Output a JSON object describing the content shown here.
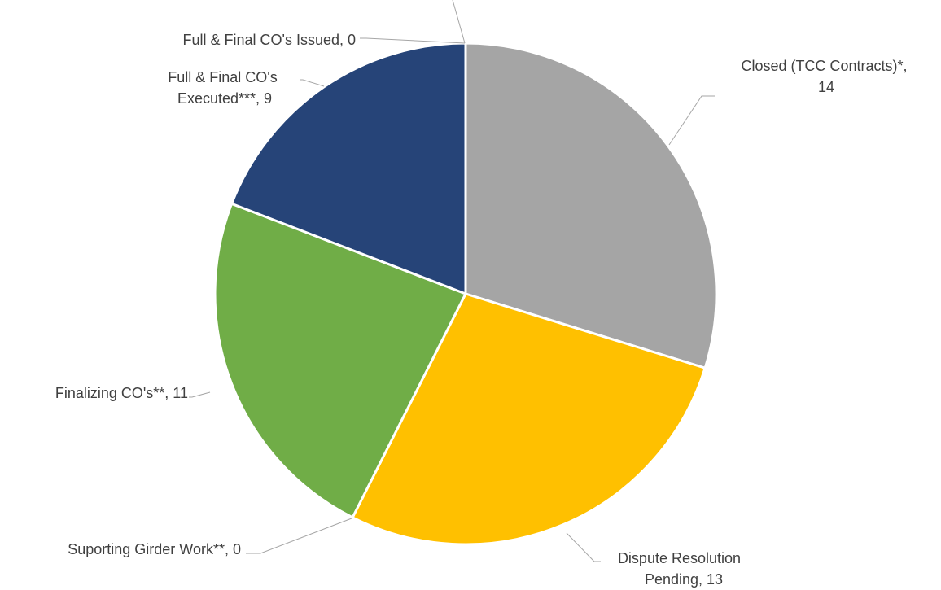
{
  "chart_data": {
    "type": "pie",
    "title": "",
    "slices": [
      {
        "label": "Closed (TCC Contracts)*",
        "value": 14,
        "color": "#a5a5a5"
      },
      {
        "label": "Dispute Resolution Pending",
        "value": 13,
        "color": "#ffc000"
      },
      {
        "label": "Suporting Girder Work**",
        "value": 0,
        "color": "#ed7d31"
      },
      {
        "label": "Finalizing CO's**",
        "value": 11,
        "color": "#70ad47"
      },
      {
        "label": "Full & Final CO's Executed***",
        "value": 9,
        "color": "#264478"
      },
      {
        "label": "Full & Final CO's Issued",
        "value": 0,
        "color": "#4472c4"
      }
    ],
    "data_labels": [
      {
        "lines": [
          "Closed (TCC Contracts)*,",
          "14"
        ]
      },
      {
        "lines": [
          "Dispute Resolution",
          "Pending, 13"
        ]
      },
      {
        "lines": [
          "Suporting Girder Work**, 0"
        ]
      },
      {
        "lines": [
          "Finalizing CO's**, 11"
        ]
      },
      {
        "lines": [
          "Full & Final CO's",
          "Executed***, 9"
        ]
      },
      {
        "lines": [
          "Full & Final CO's Issued, 0"
        ]
      }
    ]
  }
}
